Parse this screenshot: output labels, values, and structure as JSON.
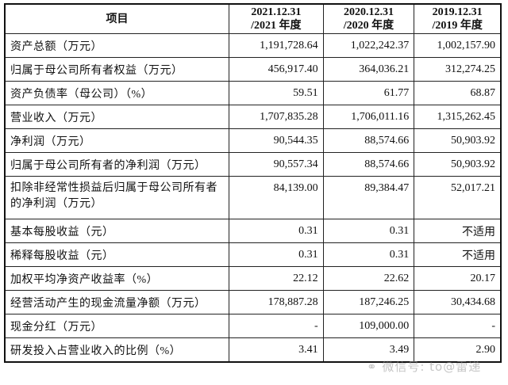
{
  "table": {
    "headers": [
      "项目",
      "2021.12.31\n/2021 年度",
      "2020.12.31\n/2020 年度",
      "2019.12.31\n/2019 年度"
    ],
    "rows": [
      {
        "label": "资产总额（万元）",
        "values": [
          "1,191,728.64",
          "1,022,242.37",
          "1,002,157.90"
        ]
      },
      {
        "label": "归属于母公司所有者权益（万元）",
        "values": [
          "456,917.40",
          "364,036.21",
          "312,274.25"
        ]
      },
      {
        "label": "资产负债率（母公司）（%）",
        "values": [
          "59.51",
          "61.77",
          "68.87"
        ]
      },
      {
        "label": "营业收入（万元）",
        "values": [
          "1,707,835.28",
          "1,706,011.16",
          "1,315,262.45"
        ]
      },
      {
        "label": "净利润（万元）",
        "values": [
          "90,544.35",
          "88,574.66",
          "50,903.92"
        ]
      },
      {
        "label": "归属于母公司所有者的净利润（万元）",
        "values": [
          "90,557.34",
          "88,574.66",
          "50,903.92"
        ]
      },
      {
        "label": "扣除非经常性损益后归属于母公司所有者的净利润（万元）",
        "values": [
          "84,139.00",
          "89,384.47",
          "52,017.21"
        ]
      },
      {
        "label": "基本每股收益（元）",
        "values": [
          "0.31",
          "0.31",
          "不适用"
        ]
      },
      {
        "label": "稀释每股收益（元）",
        "values": [
          "0.31",
          "0.31",
          "不适用"
        ]
      },
      {
        "label": "加权平均净资产收益率（%）",
        "values": [
          "22.12",
          "22.62",
          "20.17"
        ]
      },
      {
        "label": "经营活动产生的现金流量净额（万元）",
        "values": [
          "178,887.28",
          "187,246.25",
          "30,434.68"
        ]
      },
      {
        "label": "现金分红（万元）",
        "values": [
          "-",
          "109,000.00",
          "-"
        ]
      },
      {
        "label": "研发投入占营业收入的比例（%）",
        "values": [
          "3.41",
          "3.49",
          "2.90"
        ]
      }
    ]
  },
  "watermark": "微信号: to@雷递"
}
